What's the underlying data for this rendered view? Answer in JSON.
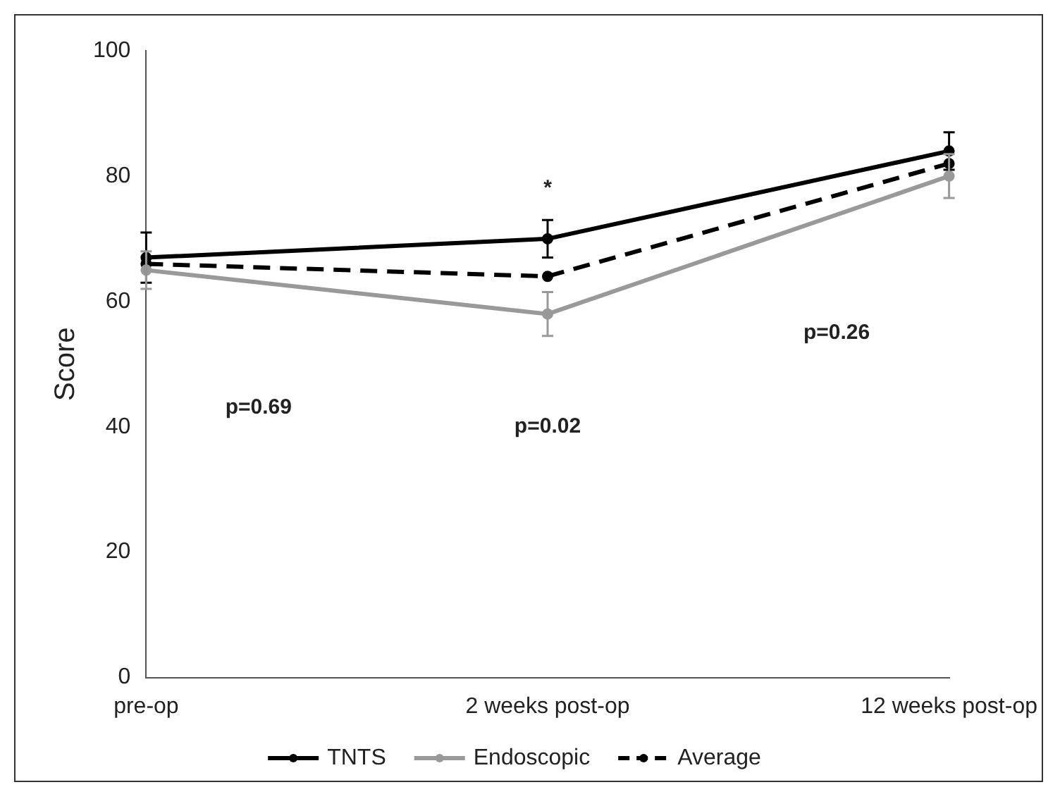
{
  "chart_data": {
    "type": "line",
    "ylabel": "Score",
    "categories": [
      "pre-op",
      "2 weeks post-op",
      "12 weeks post-op"
    ],
    "ylim": [
      0,
      100
    ],
    "yticks": [
      0,
      20,
      40,
      60,
      80,
      100
    ],
    "grid": false,
    "legend": "bottom",
    "marker": "circle",
    "series": [
      {
        "name": "TNTS",
        "color": "#000000",
        "values": [
          67,
          70,
          84
        ],
        "errors": [
          4,
          3,
          3
        ],
        "line_style": "solid"
      },
      {
        "name": "Endoscopic",
        "color": "#999999",
        "values": [
          65,
          58,
          80
        ],
        "errors": [
          3,
          3.5,
          3.5
        ],
        "line_style": "solid"
      },
      {
        "name": "Average",
        "color": "#000000",
        "values": [
          66,
          64,
          82
        ],
        "line_style": "dashed"
      }
    ],
    "annotations": [
      "*",
      "p=0.69",
      "p=0.02",
      "p=0.26"
    ]
  }
}
